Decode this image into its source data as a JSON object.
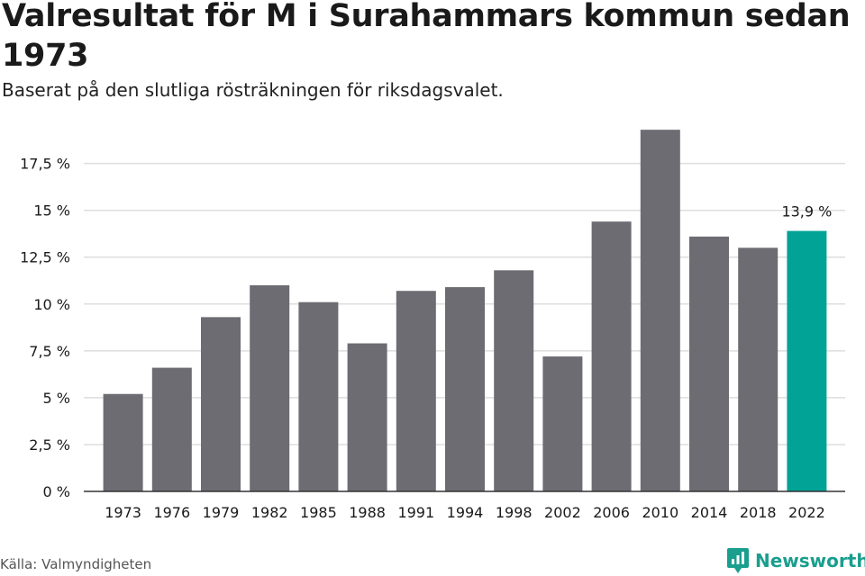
{
  "header": {
    "title": "Valresultat för M i Surahammars kommun sedan 1973",
    "subtitle": "Baserat på den slutliga rösträkningen för riksdagsvalet."
  },
  "footer": {
    "source": "Källa: Valmyndigheten",
    "brand": "Newsworthy",
    "brand_icon": "newsworthy-logo-icon"
  },
  "colors": {
    "bar": "#6d6c72",
    "highlight": "#00a396",
    "grid": "#dddddd",
    "axis": "#333333",
    "brand": "#1a9e8e"
  },
  "chart_data": {
    "type": "bar",
    "title": "Valresultat för M i Surahammars kommun sedan 1973",
    "subtitle": "Baserat på den slutliga rösträkningen för riksdagsvalet.",
    "xlabel": "",
    "ylabel": "",
    "categories": [
      "1973",
      "1976",
      "1979",
      "1982",
      "1985",
      "1988",
      "1991",
      "1994",
      "1998",
      "2002",
      "2006",
      "2010",
      "2014",
      "2018",
      "2022"
    ],
    "values": [
      5.2,
      6.6,
      9.3,
      11.0,
      10.1,
      7.9,
      10.7,
      10.9,
      11.8,
      7.2,
      14.4,
      19.3,
      13.6,
      13.0,
      13.9
    ],
    "ylim": [
      0,
      19.5
    ],
    "yticks": [
      0,
      2.5,
      5,
      7.5,
      10,
      12.5,
      15,
      17.5
    ],
    "ytick_labels": [
      "0 %",
      "2,5 %",
      "5 %",
      "7,5 %",
      "10 %",
      "12,5 %",
      "15 %",
      "17,5 %"
    ],
    "highlight_index": 14,
    "data_labels": [
      {
        "index": 14,
        "text": "13,9 %"
      }
    ],
    "grid": true,
    "legend": "none"
  }
}
